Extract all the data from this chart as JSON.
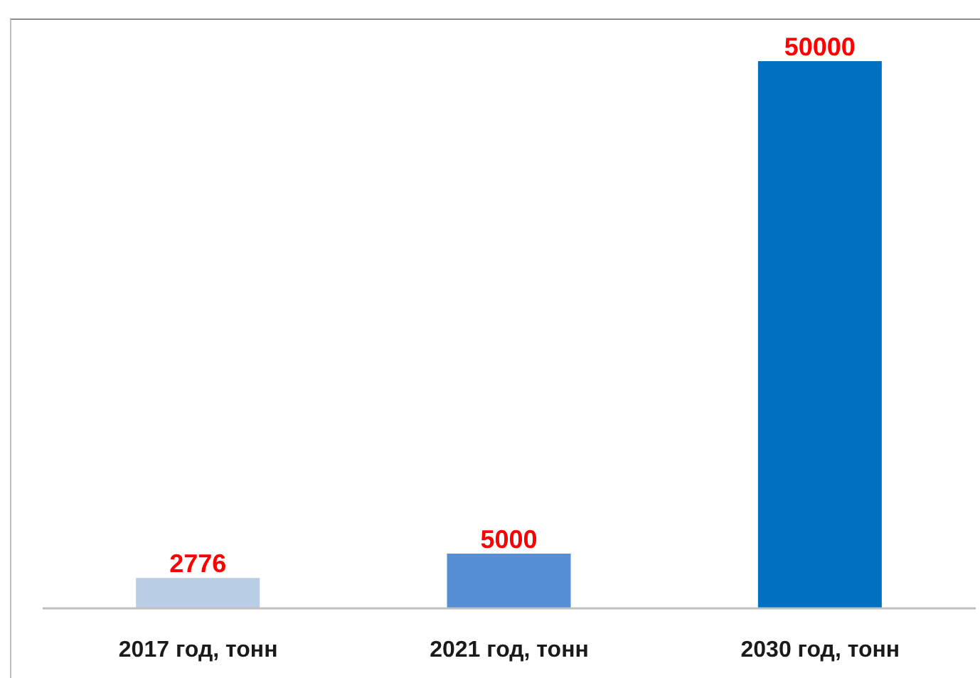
{
  "chart_data": {
    "type": "bar",
    "categories": [
      "2017 год, тонн",
      "2021 год, тонн",
      "2030 год, тонн"
    ],
    "values": [
      2776,
      5000,
      50000
    ],
    "colors": [
      "#b9cde5",
      "#558ed5",
      "#0070c0"
    ],
    "data_labels": true
  }
}
